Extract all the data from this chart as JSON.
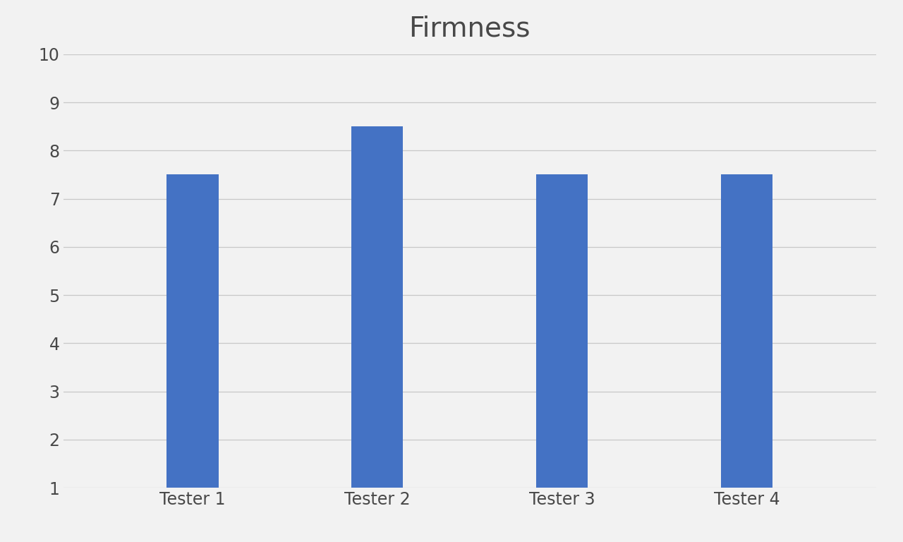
{
  "title": "Firmness",
  "categories": [
    "Tester 1",
    "Tester 2",
    "Tester 3",
    "Tester 4"
  ],
  "values": [
    7.5,
    8.5,
    7.5,
    7.5
  ],
  "bar_color": "#4472C4",
  "background_color": "#f2f2f2",
  "ylim": [
    1,
    10
  ],
  "yticks": [
    1,
    2,
    3,
    4,
    5,
    6,
    7,
    8,
    9,
    10
  ],
  "title_fontsize": 28,
  "tick_fontsize": 17,
  "grid_color": "#c8c8c8",
  "bar_width": 0.28
}
